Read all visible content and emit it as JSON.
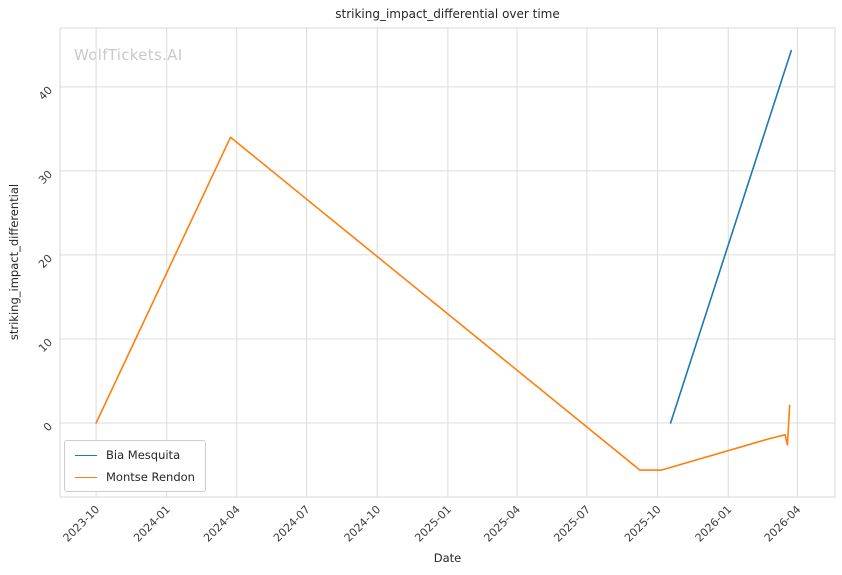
{
  "watermark": "WolfTickets.AI",
  "chart_data": {
    "type": "line",
    "title": "striking_impact_differential over time",
    "xlabel": "Date",
    "ylabel": "striking_impact_differential",
    "x_tick_labels": [
      "2023-10",
      "2024-01",
      "2024-04",
      "2024-07",
      "2024-10",
      "2025-01",
      "2025-04",
      "2025-07",
      "2025-10",
      "2026-01",
      "2026-04"
    ],
    "y_ticks": [
      0,
      10,
      20,
      30,
      40
    ],
    "xlim": [
      "2023-08-15",
      "2026-05-20"
    ],
    "ylim": [
      -8.8,
      47
    ],
    "grid": true,
    "legend_position": "lower-left",
    "colors": {
      "grid": "#dcdcdc",
      "border": "#d8d8d8",
      "tick_text": "#3d3d3d"
    },
    "series": [
      {
        "name": "Bia Mesquita",
        "color": "#1f77b4",
        "points": [
          [
            "2025-10-18",
            0
          ],
          [
            "2026-03-24",
            44.3
          ]
        ]
      },
      {
        "name": "Montse Rendon",
        "color": "#ff7f0e",
        "points": [
          [
            "2023-10-01",
            0
          ],
          [
            "2024-03-24",
            34
          ],
          [
            "2025-09-08",
            -5.6
          ],
          [
            "2025-10-06",
            -5.6
          ],
          [
            "2026-02-22",
            -1.9
          ],
          [
            "2026-03-16",
            -1.4
          ],
          [
            "2026-03-19",
            -2.6
          ],
          [
            "2026-03-22",
            2.1
          ]
        ]
      }
    ]
  }
}
